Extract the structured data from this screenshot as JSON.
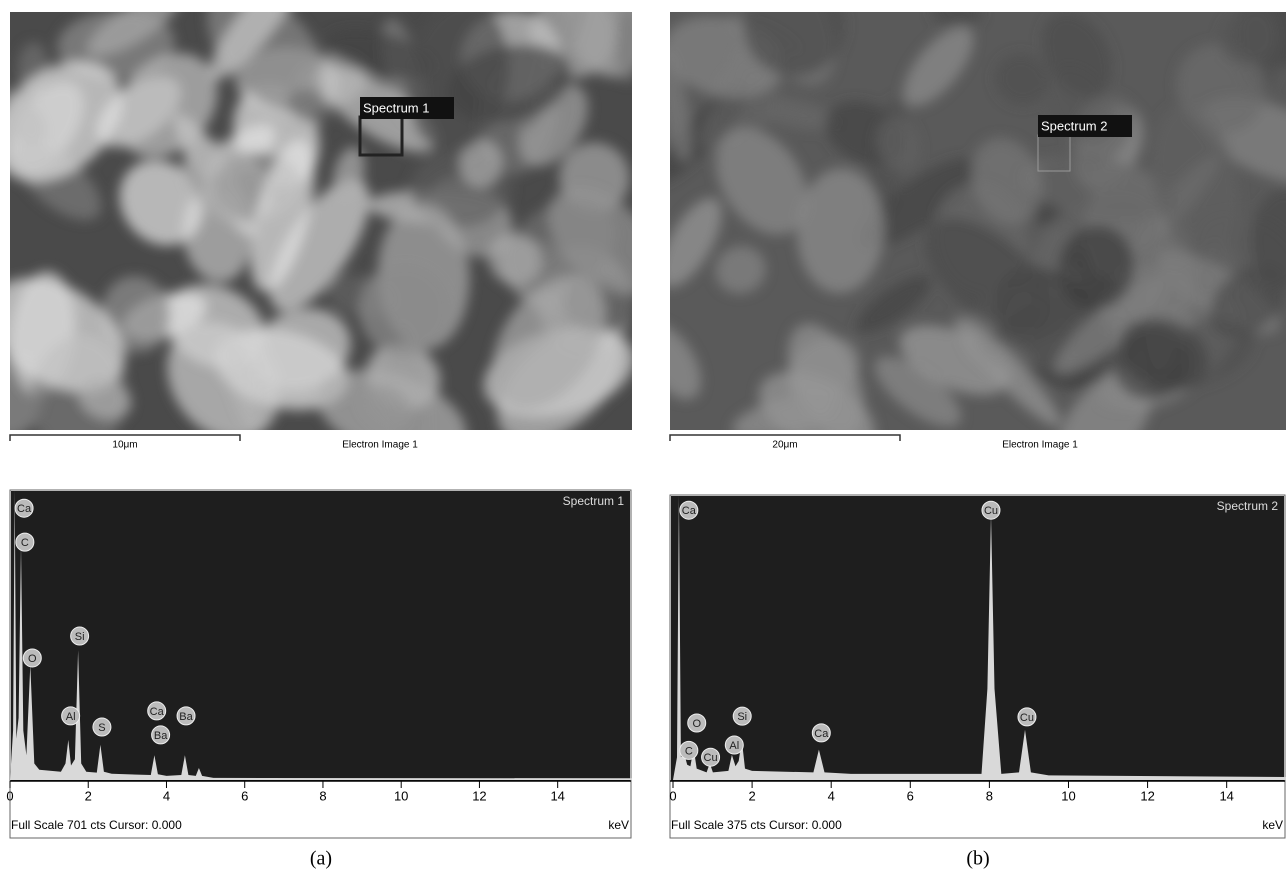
{
  "images": [
    {
      "box_label": "Spectrum 1",
      "scale_bar": "10μm",
      "caption": "Electron Image 1"
    },
    {
      "box_label": "Spectrum 2",
      "scale_bar": "20μm",
      "caption": "Electron Image 1"
    }
  ],
  "panel_labels": [
    "(a)",
    "(b)"
  ],
  "chart_data": [
    {
      "type": "area",
      "title": "Spectrum 1",
      "x_label": "keV",
      "footer": "Full Scale 701 cts Cursor: 0.000",
      "color": "#d9d9d9",
      "xlim": [
        0,
        15.9
      ],
      "xticks": [
        0,
        2,
        4,
        6,
        8,
        10,
        12,
        14
      ],
      "ylim": [
        0,
        701
      ],
      "x": [
        0,
        0.08,
        0.12,
        0.16,
        0.22,
        0.28,
        0.34,
        0.42,
        0.52,
        0.62,
        0.75,
        1.3,
        1.42,
        1.49,
        1.56,
        1.66,
        1.74,
        1.82,
        1.95,
        2.22,
        2.31,
        2.4,
        2.6,
        3.6,
        3.69,
        3.78,
        4.0,
        4.38,
        4.47,
        4.56,
        4.75,
        4.83,
        4.91,
        5.2,
        15.9
      ],
      "values": [
        0,
        120,
        701,
        100,
        150,
        568,
        120,
        60,
        278,
        40,
        25,
        20,
        40,
        97,
        35,
        50,
        314,
        40,
        20,
        18,
        85,
        20,
        15,
        12,
        60,
        14,
        10,
        12,
        60,
        12,
        10,
        29,
        10,
        5,
        4
      ],
      "peak_labels": [
        {
          "label": "Ca",
          "x": 0.36,
          "y": 657
        },
        {
          "label": "C",
          "x": 0.38,
          "y": 575
        },
        {
          "label": "O",
          "x": 0.57,
          "y": 295
        },
        {
          "label": "Si",
          "x": 1.78,
          "y": 348
        },
        {
          "label": "Al",
          "x": 1.55,
          "y": 155
        },
        {
          "label": "S",
          "x": 2.35,
          "y": 128
        },
        {
          "label": "Ca",
          "x": 3.75,
          "y": 167
        },
        {
          "label": "Ba",
          "x": 3.85,
          "y": 109
        },
        {
          "label": "Ba",
          "x": 4.5,
          "y": 155
        }
      ]
    },
    {
      "type": "area",
      "title": "Spectrum 2",
      "x_label": "keV",
      "footer": "Full Scale 375 cts Cursor: 0.000",
      "color": "#d9d9d9",
      "xlim": [
        0,
        15.5
      ],
      "xticks": [
        0,
        2,
        4,
        6,
        8,
        10,
        12,
        14
      ],
      "ylim": [
        0,
        375
      ],
      "x": [
        0,
        0.1,
        0.15,
        0.2,
        0.28,
        0.36,
        0.44,
        0.52,
        0.6,
        0.85,
        0.93,
        1.01,
        1.4,
        1.49,
        1.58,
        1.66,
        1.74,
        1.82,
        2.0,
        3.55,
        3.69,
        3.83,
        4.5,
        7.8,
        7.95,
        8.04,
        8.13,
        8.3,
        8.75,
        8.9,
        9.05,
        9.5,
        15.5
      ],
      "values": [
        0,
        30,
        375,
        30,
        35,
        20,
        18,
        42,
        15,
        10,
        22,
        10,
        12,
        33,
        18,
        25,
        53,
        15,
        12,
        10,
        40,
        10,
        8,
        8,
        120,
        350,
        120,
        8,
        10,
        66,
        10,
        6,
        4
      ],
      "peak_labels": [
        {
          "label": "Ca",
          "x": 0.4,
          "y": 355
        },
        {
          "label": "Cu",
          "x": 8.04,
          "y": 355
        },
        {
          "label": "O",
          "x": 0.6,
          "y": 75
        },
        {
          "label": "C",
          "x": 0.4,
          "y": 39
        },
        {
          "label": "Cu",
          "x": 0.95,
          "y": 30
        },
        {
          "label": "Al",
          "x": 1.55,
          "y": 46
        },
        {
          "label": "Si",
          "x": 1.75,
          "y": 84
        },
        {
          "label": "Ca",
          "x": 3.75,
          "y": 62
        },
        {
          "label": "Cu",
          "x": 8.95,
          "y": 83
        }
      ]
    }
  ]
}
